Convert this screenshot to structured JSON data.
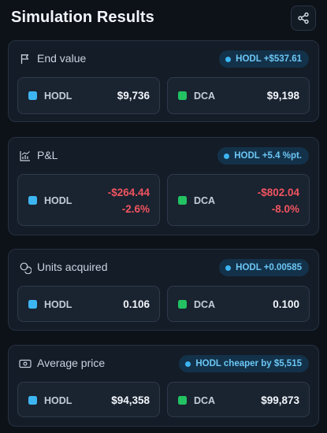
{
  "header": {
    "title": "Simulation Results",
    "share_icon": "share-icon"
  },
  "colors": {
    "hodl": "#3db5f2",
    "dca": "#23c263",
    "negative": "#f0545f",
    "badge_text": "#6cc6f5"
  },
  "cards": {
    "end_value": {
      "title": "End value",
      "icon": "flag-icon",
      "badge": "HODL +$537.61",
      "hodl": {
        "label": "HODL",
        "value": "$9,736"
      },
      "dca": {
        "label": "DCA",
        "value": "$9,198"
      }
    },
    "pnl": {
      "title": "P&L",
      "icon": "chart-icon",
      "badge": "HODL +5.4 %pt.",
      "hodl": {
        "label": "HODL",
        "value": "-$264.44",
        "pct": "-2.6%"
      },
      "dca": {
        "label": "DCA",
        "value": "-$802.04",
        "pct": "-8.0%"
      }
    },
    "units": {
      "title": "Units acquired",
      "icon": "coins-icon",
      "badge": "HODL +0.00585",
      "hodl": {
        "label": "HODL",
        "value": "0.106"
      },
      "dca": {
        "label": "DCA",
        "value": "0.100"
      }
    },
    "avg_price": {
      "title": "Average price",
      "icon": "banknote-icon",
      "badge": "HODL cheaper by $5,515",
      "hodl": {
        "label": "HODL",
        "value": "$94,358"
      },
      "dca": {
        "label": "DCA",
        "value": "$99,873"
      }
    }
  }
}
